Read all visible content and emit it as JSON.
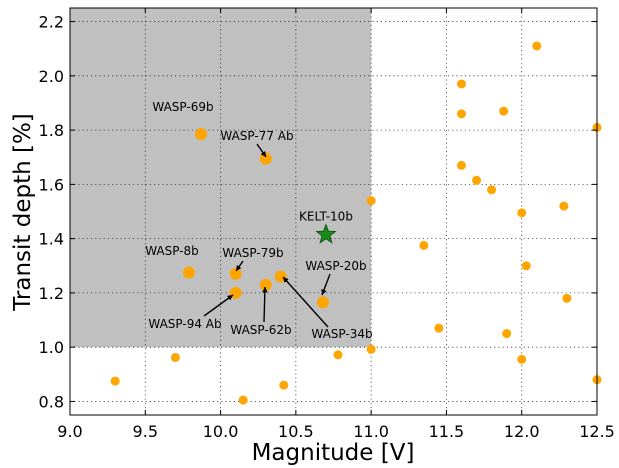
{
  "chart_data": {
    "type": "scatter",
    "xlabel": "Magnitude [V]",
    "ylabel": "Transit depth [%]",
    "xlim": [
      9.0,
      12.5
    ],
    "ylim": [
      0.75,
      2.25
    ],
    "xticks": [
      "9.0",
      "9.5",
      "10.0",
      "10.5",
      "11.0",
      "11.5",
      "12.0",
      "12.5"
    ],
    "yticks": [
      "0.8",
      "1.0",
      "1.2",
      "1.4",
      "1.6",
      "1.8",
      "2.0",
      "2.2"
    ],
    "grid": true,
    "shaded_region": {
      "x": [
        9.0,
        11.0
      ],
      "y": [
        1.0,
        2.25
      ],
      "color": "#c0c0c0"
    },
    "marker_color": "#ffa500",
    "points": [
      [
        9.3,
        0.875
      ],
      [
        9.7,
        0.962
      ],
      [
        10.15,
        0.805
      ],
      [
        10.42,
        0.86
      ],
      [
        10.78,
        0.972
      ],
      [
        11.0,
        0.992
      ],
      [
        11.0,
        1.54
      ],
      [
        11.35,
        1.375
      ],
      [
        11.45,
        1.07
      ],
      [
        11.6,
        1.97
      ],
      [
        11.6,
        1.86
      ],
      [
        11.6,
        1.67
      ],
      [
        11.7,
        1.615
      ],
      [
        11.8,
        1.58
      ],
      [
        11.88,
        1.87
      ],
      [
        11.9,
        1.05
      ],
      [
        12.0,
        1.495
      ],
      [
        12.0,
        0.955
      ],
      [
        12.03,
        1.3
      ],
      [
        12.1,
        2.11
      ],
      [
        12.28,
        1.52
      ],
      [
        12.3,
        1.18
      ],
      [
        12.5,
        1.81
      ],
      [
        12.5,
        0.88
      ]
    ],
    "labeled_points": [
      {
        "name": "WASP-69b",
        "x": 9.87,
        "y": 1.785
      },
      {
        "name": "WASP-77 Ab",
        "x": 10.3,
        "y": 1.695
      },
      {
        "name": "WASP-8b",
        "x": 9.79,
        "y": 1.275
      },
      {
        "name": "WASP-79b",
        "x": 10.1,
        "y": 1.27
      },
      {
        "name": "WASP-94 Ab",
        "x": 10.1,
        "y": 1.2
      },
      {
        "name": "WASP-62b",
        "x": 10.3,
        "y": 1.23
      },
      {
        "name": "WASP-34b",
        "x": 10.4,
        "y": 1.26
      },
      {
        "name": "WASP-20b",
        "x": 10.68,
        "y": 1.165
      }
    ],
    "highlight": {
      "name": "KELT-10b",
      "x": 10.7,
      "y": 1.415,
      "marker": "star",
      "color": "#1a8a1a"
    }
  }
}
